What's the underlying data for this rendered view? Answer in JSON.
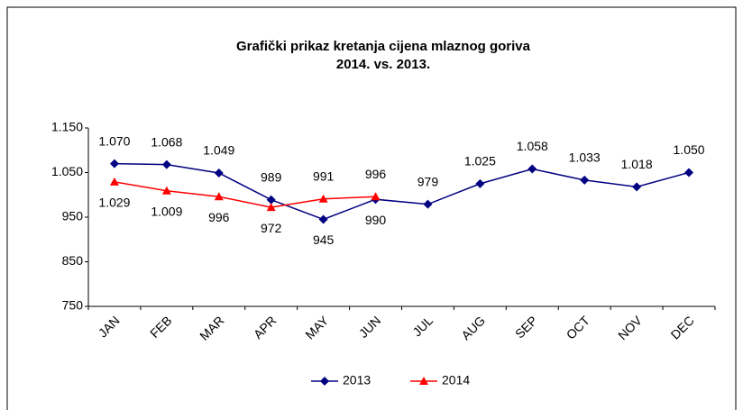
{
  "chart_data": {
    "type": "line",
    "title": "Grafički prikaz kretanja cijena mlaznog goriva",
    "subtitle": "2014. vs. 2013.",
    "categories": [
      "JAN",
      "FEB",
      "MAR",
      "APR",
      "MAY",
      "JUN",
      "JUL",
      "AUG",
      "SEP",
      "OCT",
      "NOV",
      "DEC"
    ],
    "series": [
      {
        "name": "2013",
        "color": "#000080",
        "marker": "diamond",
        "values": [
          1070,
          1068,
          1049,
          989,
          945,
          990,
          979,
          1025,
          1058,
          1033,
          1018,
          1050
        ],
        "value_labels": [
          "1.070",
          "1.068",
          "1.049",
          "989",
          "945",
          "990",
          "979",
          "1.025",
          "1.058",
          "1.033",
          "1.018",
          "1.050"
        ]
      },
      {
        "name": "2014",
        "color": "#ff0000",
        "marker": "triangle",
        "values": [
          1029,
          1009,
          996,
          972,
          991,
          996,
          null,
          null,
          null,
          null,
          null,
          null
        ],
        "value_labels": [
          "1.029",
          "1.009",
          "996",
          "972",
          "991",
          "996",
          null,
          null,
          null,
          null,
          null,
          null
        ]
      }
    ],
    "ylim": [
      750,
      1150
    ],
    "yticks": [
      {
        "value": 750,
        "label": "750"
      },
      {
        "value": 850,
        "label": "850"
      },
      {
        "value": 950,
        "label": "950"
      },
      {
        "value": 1050,
        "label": "1.050"
      },
      {
        "value": 1150,
        "label": "1.150"
      }
    ],
    "legend": "bottom"
  }
}
